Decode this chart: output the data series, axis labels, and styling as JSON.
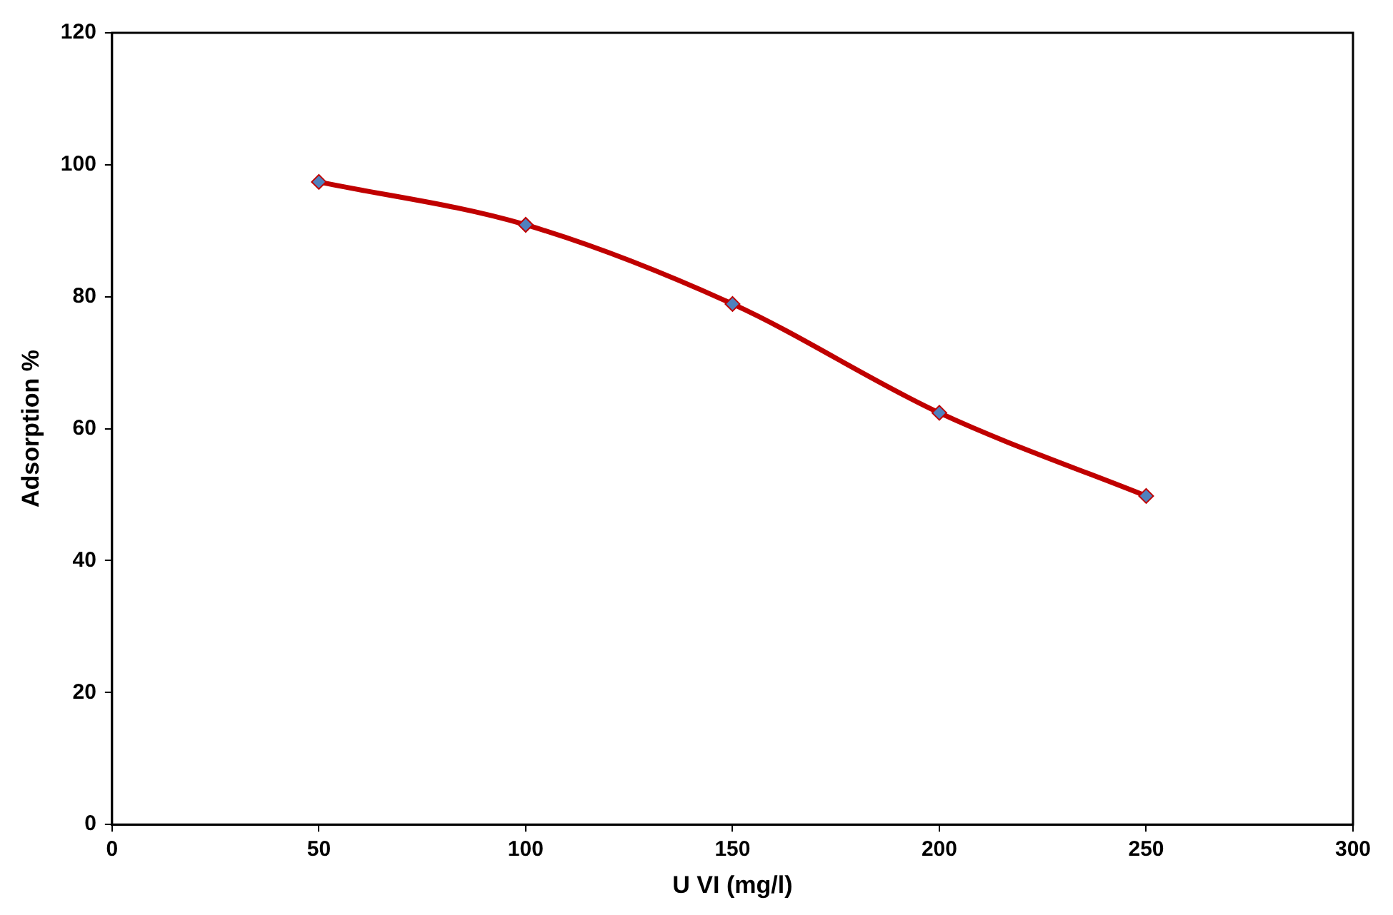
{
  "chart_data": {
    "type": "line",
    "xlabel": "U VI (mg/l)",
    "ylabel": "Adsorption %",
    "x": [
      50,
      100,
      150,
      200,
      250
    ],
    "series": [
      {
        "color": "#c00000",
        "values": [
          97.4,
          90.9,
          78.9,
          62.4,
          49.8
        ]
      }
    ],
    "xlim": [
      0,
      300
    ],
    "xticks": [
      0,
      50,
      100,
      150,
      200,
      250,
      300
    ],
    "ylim": [
      0,
      120
    ],
    "yticks": [
      0,
      20,
      40,
      60,
      80,
      100,
      120
    ],
    "grid": false,
    "legend": false,
    "marker": "diamond",
    "line_style": "solid"
  }
}
